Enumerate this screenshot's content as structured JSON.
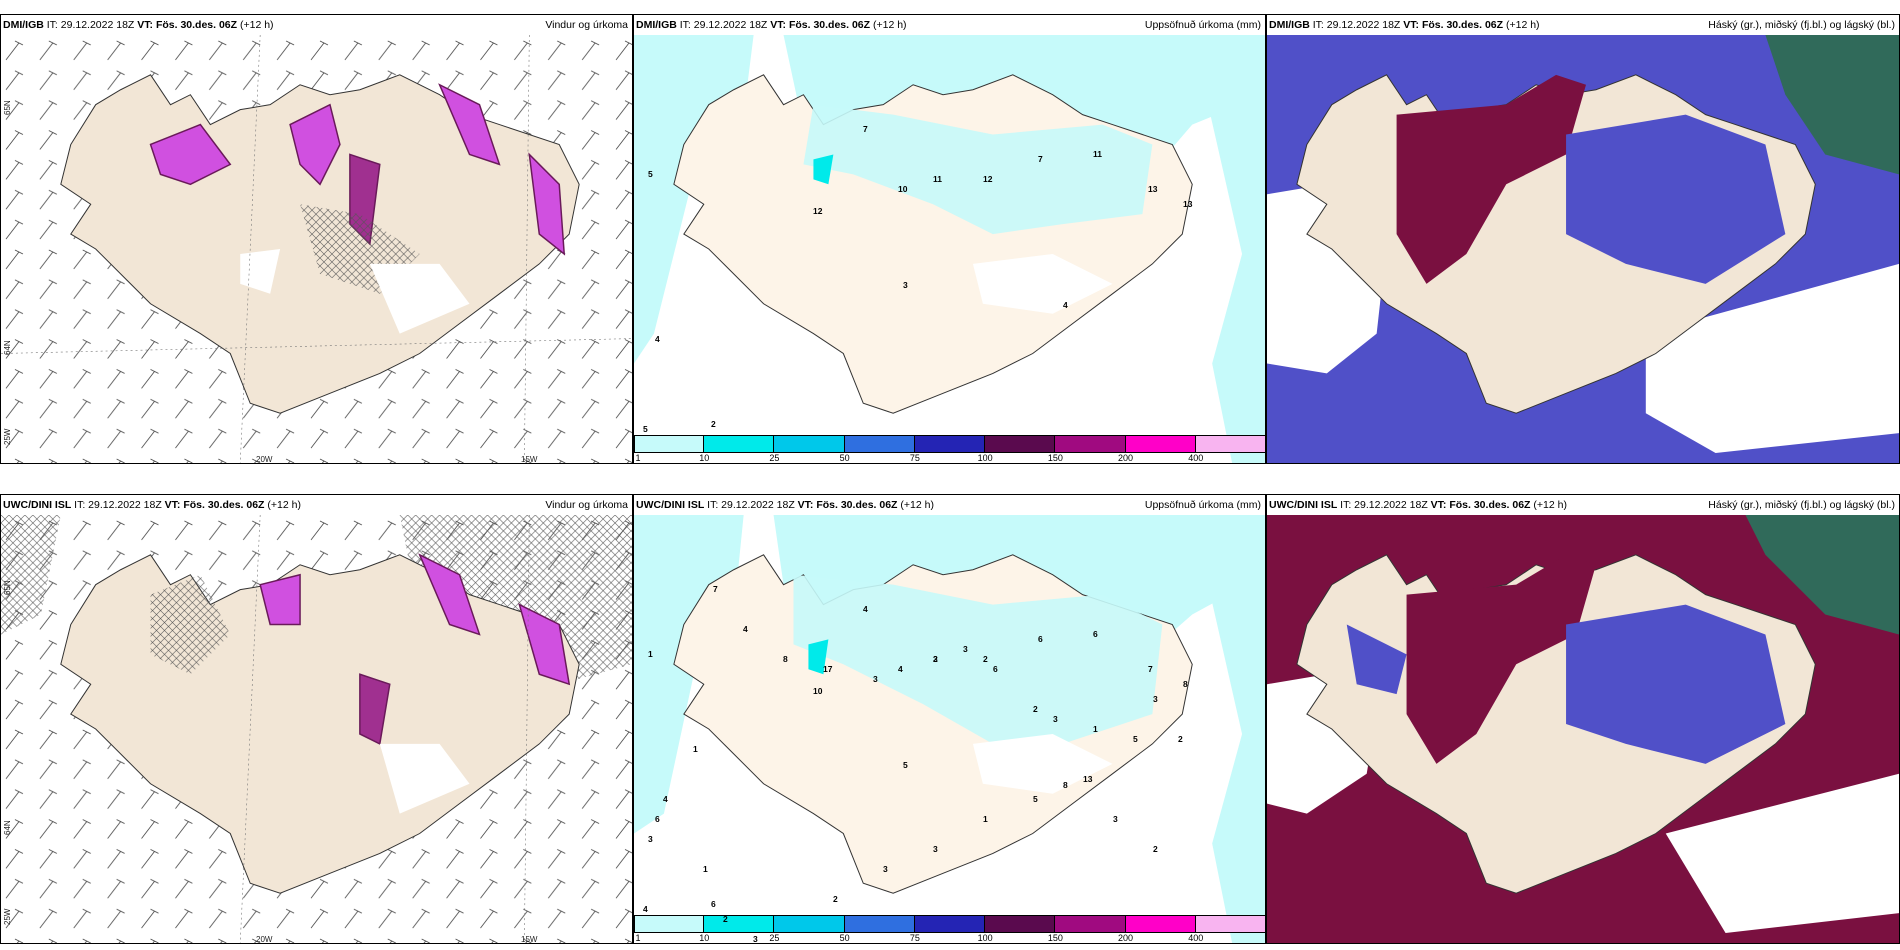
{
  "panels": [
    {
      "model": "DMI/IGB",
      "it": "IT: 29.12.2022 18Z",
      "vt_label": "VT:",
      "vt": "Fös. 30.des. 06Z",
      "lead": "(+12 h)",
      "right": "Vindur og úrkoma"
    },
    {
      "model": "DMI/IGB",
      "it": "IT: 29.12.2022 18Z",
      "vt_label": "VT:",
      "vt": "Fös. 30.des. 06Z",
      "lead": "(+12 h)",
      "right": "Uppsöfnuð úrkoma (mm)"
    },
    {
      "model": "DMI/IGB",
      "it": "IT: 29.12.2022 18Z",
      "vt_label": "VT:",
      "vt": "Fös. 30.des. 06Z",
      "lead": "(+12 h)",
      "right": "Háský (gr.), miðský (fj.bl.) og lágský (bl.)"
    },
    {
      "model": "UWC/DINI ISL",
      "it": "IT: 29.12.2022 18Z",
      "vt_label": "VT:",
      "vt": "Fös. 30.des. 06Z",
      "lead": "(+12 h)",
      "right": "Vindur og úrkoma"
    },
    {
      "model": "UWC/DINI ISL",
      "it": "IT: 29.12.2022 18Z",
      "vt_label": "VT:",
      "vt": "Fös. 30.des. 06Z",
      "lead": "(+12 h)",
      "right": "Uppsöfnuð úrkoma (mm)"
    },
    {
      "model": "UWC/DINI ISL",
      "it": "IT: 29.12.2022 18Z",
      "vt_label": "VT:",
      "vt": "Fös. 30.des. 06Z",
      "lead": "(+12 h)",
      "right": "Háský (gr.), miðský (fj.bl.) og lágský (bl.)"
    }
  ],
  "grid_labels": {
    "lon_a": "20W",
    "lon_b": "15W",
    "lat_a": "65N",
    "lat_b": "64N",
    "lat_c": "25W"
  },
  "colorbar": {
    "labels": [
      "1",
      "10",
      "25",
      "50",
      "75",
      "100",
      "150",
      "200",
      "400"
    ],
    "colors": [
      "#c6fafa",
      "#00eaea",
      "#00c8ea",
      "#2f6fe0",
      "#2424b4",
      "#5a0a4e",
      "#a00a80",
      "#ff00c8",
      "#f8b4f0"
    ]
  },
  "precip_numbers_top": [
    "7",
    "5",
    "10",
    "11",
    "12",
    "7",
    "11",
    "13",
    "13",
    "12",
    "3",
    "4",
    "4",
    "5",
    "2"
  ],
  "precip_numbers_bottom": [
    "4",
    "1",
    "4",
    "3",
    "2",
    "6",
    "6",
    "7",
    "8",
    "10",
    "5",
    "8",
    "6",
    "4",
    "6",
    "7",
    "4",
    "8",
    "17",
    "3",
    "2",
    "3",
    "6",
    "2",
    "3",
    "1",
    "5",
    "3",
    "2",
    "1",
    "4",
    "3",
    "1",
    "2",
    "3",
    "2",
    "3",
    "3",
    "1",
    "5",
    "13",
    "3",
    "2"
  ],
  "colors": {
    "land": "#f2e6d6",
    "sea": "#ffffff",
    "precip_purple": "#d050e0",
    "dark_purple": "#6a1a5a",
    "lowcloud": "#5050c8",
    "midcloud": "#7a1040",
    "highcloud": "#306a5a"
  }
}
